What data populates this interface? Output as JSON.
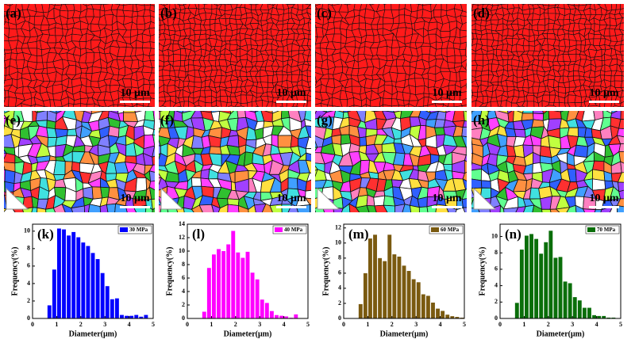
{
  "panels": [
    {
      "label": "(a)",
      "scale": "10 μm"
    },
    {
      "label": "(b)",
      "scale": "10 μm"
    },
    {
      "label": "(c)",
      "scale": "10 μm"
    },
    {
      "label": "(d)",
      "scale": "10 μm"
    },
    {
      "label": "(e)",
      "scale": "10 μm"
    },
    {
      "label": "(f)",
      "scale": "10 μm"
    },
    {
      "label": "(g)",
      "scale": "10 μm"
    },
    {
      "label": "(h)",
      "scale": "10 μm"
    }
  ],
  "chart_data": [
    {
      "type": "histogram",
      "label": "(k)",
      "xlabel": "Diameter(μm)",
      "ylabel": "Frequency(%)",
      "bins": [
        0.6,
        0.8,
        1.0,
        1.2,
        1.4,
        1.6,
        1.8,
        2.0,
        2.2,
        2.4,
        2.6,
        2.8,
        3.0,
        3.2,
        3.4,
        3.6,
        3.8,
        4.0,
        4.2,
        4.4,
        4.6,
        4.8
      ],
      "series": [
        {
          "name": "30 MPa",
          "color": "#0000ff",
          "values": [
            1.5,
            5.6,
            10.3,
            10.2,
            9.5,
            9.9,
            9.3,
            8.7,
            8.3,
            7.5,
            6.8,
            5.2,
            3.7,
            2.2,
            2.3,
            0.4,
            0.3,
            0.3,
            0.4,
            0.2,
            0.4
          ]
        }
      ],
      "xlim": [
        0,
        5
      ],
      "xticks": [
        0,
        1,
        2,
        3,
        4,
        5
      ],
      "ylim": [
        0,
        10.8
      ],
      "yticks": [
        0,
        2,
        4,
        6,
        8,
        10
      ]
    },
    {
      "type": "histogram",
      "label": "(l)",
      "xlabel": "Diameter(μm)",
      "ylabel": "Frequency(%)",
      "bins": [
        0.6,
        0.8,
        1.0,
        1.2,
        1.4,
        1.6,
        1.8,
        2.0,
        2.2,
        2.4,
        2.6,
        2.8,
        3.0,
        3.2,
        3.4,
        3.6,
        3.8,
        4.0,
        4.2,
        4.4,
        4.6
      ],
      "series": [
        {
          "name": "40 MPa",
          "color": "#ff00ff",
          "values": [
            1.0,
            7.5,
            9.5,
            10.3,
            10.0,
            11.0,
            13.0,
            9.8,
            9.0,
            9.9,
            6.8,
            5.8,
            2.8,
            2.3,
            1.1,
            0.5,
            0.4,
            0.3,
            0.1,
            0.6
          ]
        }
      ],
      "xlim": [
        0,
        5
      ],
      "xticks": [
        0,
        1,
        2,
        3,
        4,
        5
      ],
      "ylim": [
        0,
        14
      ],
      "yticks": [
        0,
        2,
        4,
        6,
        8,
        10,
        12,
        14
      ]
    },
    {
      "type": "histogram",
      "label": "(m)",
      "xlabel": "Diameter(μm)",
      "ylabel": "Frequency(%)",
      "bins": [
        0.6,
        0.8,
        1.0,
        1.2,
        1.4,
        1.6,
        1.8,
        2.0,
        2.2,
        2.4,
        2.6,
        2.8,
        3.0,
        3.2,
        3.4,
        3.6,
        3.8,
        4.0,
        4.2,
        4.4,
        4.6,
        4.8,
        5.0
      ],
      "series": [
        {
          "name": "60 MPa",
          "color": "#7a5a10",
          "values": [
            1.9,
            6.0,
            10.6,
            11.1,
            8.0,
            7.6,
            11.1,
            8.5,
            8.2,
            7.0,
            6.3,
            5.2,
            4.8,
            3.2,
            3.0,
            2.1,
            1.3,
            1.0,
            0.5,
            0.3,
            0.2,
            0.1
          ]
        }
      ],
      "xlim": [
        0,
        5
      ],
      "xticks": [
        0,
        1,
        2,
        3,
        4,
        5
      ],
      "ylim": [
        0,
        12.5
      ],
      "yticks": [
        0,
        2,
        4,
        6,
        8,
        10,
        12
      ]
    },
    {
      "type": "histogram",
      "label": "(n)",
      "xlabel": "Diameter(μm)",
      "ylabel": "Frequency(%)",
      "bins": [
        0.6,
        0.8,
        1.0,
        1.2,
        1.4,
        1.6,
        1.8,
        2.0,
        2.2,
        2.4,
        2.6,
        2.8,
        3.0,
        3.2,
        3.4,
        3.6,
        3.8,
        4.0,
        4.2,
        4.4,
        4.6,
        4.8
      ],
      "series": [
        {
          "name": "70 MPa",
          "color": "#0a6e0a",
          "values": [
            1.9,
            8.4,
            10.1,
            10.3,
            9.7,
            7.9,
            9.3,
            10.7,
            7.4,
            7.5,
            4.5,
            4.3,
            2.6,
            2.2,
            1.3,
            1.3,
            0.4,
            0.3,
            0.3,
            0.1,
            0.1
          ]
        }
      ],
      "xlim": [
        0,
        5
      ],
      "xticks": [
        0,
        1,
        2,
        3,
        4,
        5
      ],
      "ylim": [
        0,
        11.5
      ],
      "yticks": [
        0,
        2,
        4,
        6,
        8,
        10
      ]
    }
  ]
}
